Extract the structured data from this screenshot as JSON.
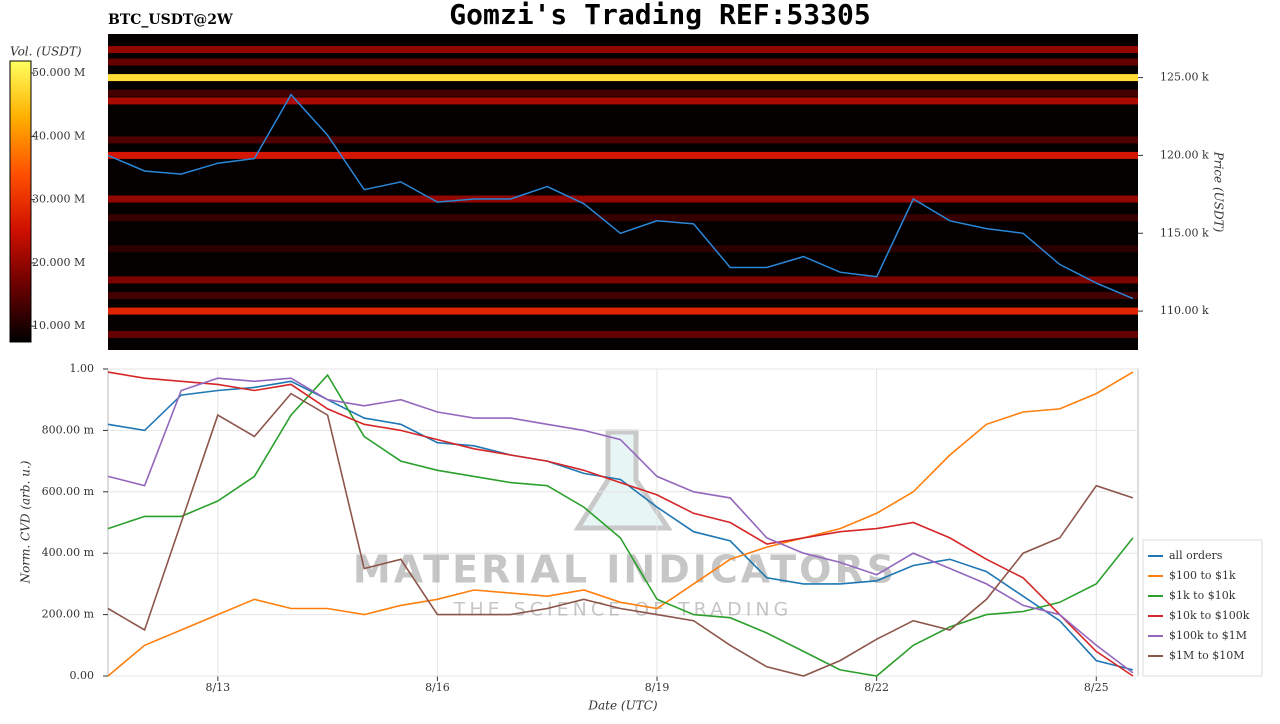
{
  "chart_data": [
    {
      "type": "heatmap",
      "title": "Gomzi's Trading REF:53305",
      "subtitle": "BTC_USDT@2W",
      "ylabel": "Price (USDT)",
      "colorbar_label": "Vol. (USDT)",
      "x": [
        11.5,
        12,
        12.5,
        13,
        13.5,
        14,
        14.5,
        15,
        15.5,
        16,
        16.5,
        17,
        17.5,
        18,
        18.5,
        19,
        19.5,
        20,
        20.5,
        21,
        21.5,
        22,
        22.5,
        23,
        23.5,
        24,
        24.5,
        25,
        25.5
      ],
      "xlim": [
        11.5,
        25.57
      ],
      "ylim": [
        107500,
        127800
      ],
      "yticks": [
        {
          "value": 110000,
          "label": "110.00 k"
        },
        {
          "value": 115000,
          "label": "115.00 k"
        },
        {
          "value": 120000,
          "label": "120.00 k"
        },
        {
          "value": 125000,
          "label": "125.00 k"
        }
      ],
      "clim": [
        7500000,
        51900000
      ],
      "cticks": [
        {
          "value": 10000000,
          "label": "10.000 M"
        },
        {
          "value": 20000000,
          "label": "20.000 M"
        },
        {
          "value": 30000000,
          "label": "30.000 M"
        },
        {
          "value": 40000000,
          "label": "40.000 M"
        },
        {
          "value": 50000000,
          "label": "50.000 M"
        }
      ],
      "colormap": [
        "#000000",
        "#6a0000",
        "#d01000",
        "#ff5000",
        "#ffb000",
        "#ffff60"
      ],
      "levels": [
        {
          "price": 126800,
          "volume": 20000000
        },
        {
          "price": 126000,
          "volume": 16000000
        },
        {
          "price": 125000,
          "volume": 48000000
        },
        {
          "price": 124000,
          "volume": 13000000
        },
        {
          "price": 123500,
          "volume": 22000000
        },
        {
          "price": 121000,
          "volume": 14000000
        },
        {
          "price": 120000,
          "volume": 26000000
        },
        {
          "price": 117200,
          "volume": 20000000
        },
        {
          "price": 116000,
          "volume": 12000000
        },
        {
          "price": 114000,
          "volume": 11000000
        },
        {
          "price": 112000,
          "volume": 18000000
        },
        {
          "price": 111000,
          "volume": 13000000
        },
        {
          "price": 110000,
          "volume": 28000000
        },
        {
          "price": 108500,
          "volume": 16000000
        }
      ],
      "series": [
        {
          "color": "#2a86d6",
          "values": [
            120000,
            119000,
            118800,
            119500,
            119800,
            123900,
            121300,
            117800,
            118300,
            117000,
            117200,
            117200,
            118000,
            116900,
            115000,
            115800,
            115600,
            112800,
            112800,
            113500,
            112500,
            112200,
            117200,
            115800,
            115300,
            115000,
            113000,
            111800,
            110800
          ]
        }
      ]
    },
    {
      "type": "line",
      "xlabel": "Date (UTC)",
      "ylabel": "Norm. CVD (arb. u.)",
      "x": [
        11.5,
        12,
        12.5,
        13,
        13.5,
        14,
        14.5,
        15,
        15.5,
        16,
        16.5,
        17,
        17.5,
        18,
        18.5,
        19,
        19.5,
        20,
        20.5,
        21,
        21.5,
        22,
        22.5,
        23,
        23.5,
        24,
        24.5,
        25,
        25.5
      ],
      "xlim": [
        11.5,
        25.57
      ],
      "xticks": [
        {
          "value": 13,
          "label": "8/13"
        },
        {
          "value": 16,
          "label": "8/16"
        },
        {
          "value": 19,
          "label": "8/19"
        },
        {
          "value": 22,
          "label": "8/22"
        },
        {
          "value": 25,
          "label": "8/25"
        }
      ],
      "ylim": [
        0,
        1
      ],
      "yticks": [
        {
          "value": 0,
          "label": "0.00"
        },
        {
          "value": 0.2,
          "label": "200.00 m"
        },
        {
          "value": 0.4,
          "label": "400.00 m"
        },
        {
          "value": 0.6,
          "label": "600.00 m"
        },
        {
          "value": 0.8,
          "label": "800.00 m"
        },
        {
          "value": 1,
          "label": "1.00"
        }
      ],
      "grid": true,
      "legend": "right",
      "watermark": [
        "MATERIAL INDICATORS",
        "THE SCIENCE OF TRADING"
      ],
      "series": [
        {
          "name": "all orders",
          "color": "#1f77b4",
          "values": [
            0.82,
            0.8,
            0.915,
            0.93,
            0.94,
            0.96,
            0.9,
            0.84,
            0.82,
            0.76,
            0.75,
            0.72,
            0.7,
            0.66,
            0.64,
            0.55,
            0.47,
            0.44,
            0.32,
            0.3,
            0.3,
            0.31,
            0.36,
            0.38,
            0.34,
            0.26,
            0.18,
            0.05,
            0.02
          ]
        },
        {
          "name": "$100 to $1k",
          "color": "#ff7f0e",
          "values": [
            0,
            0.1,
            0.15,
            0.2,
            0.25,
            0.22,
            0.22,
            0.2,
            0.23,
            0.25,
            0.28,
            0.27,
            0.26,
            0.28,
            0.24,
            0.22,
            0.3,
            0.38,
            0.42,
            0.45,
            0.48,
            0.53,
            0.6,
            0.72,
            0.82,
            0.86,
            0.87,
            0.92,
            0.99
          ]
        },
        {
          "name": "$1k to $10k",
          "color": "#2ca02c",
          "values": [
            0.48,
            0.52,
            0.52,
            0.57,
            0.65,
            0.85,
            0.98,
            0.78,
            0.7,
            0.67,
            0.65,
            0.63,
            0.62,
            0.55,
            0.45,
            0.25,
            0.2,
            0.19,
            0.14,
            0.08,
            0.02,
            0,
            0.1,
            0.16,
            0.2,
            0.21,
            0.24,
            0.3,
            0.45
          ]
        },
        {
          "name": "$10k to $100k",
          "color": "#d62728",
          "values": [
            0.99,
            0.97,
            0.96,
            0.95,
            0.93,
            0.95,
            0.87,
            0.82,
            0.8,
            0.77,
            0.74,
            0.72,
            0.7,
            0.67,
            0.63,
            0.59,
            0.53,
            0.5,
            0.43,
            0.45,
            0.47,
            0.48,
            0.5,
            0.45,
            0.38,
            0.32,
            0.2,
            0.08,
            0
          ]
        },
        {
          "name": "$100k to $1M",
          "color": "#9467bd",
          "values": [
            0.65,
            0.62,
            0.93,
            0.97,
            0.96,
            0.97,
            0.9,
            0.88,
            0.9,
            0.86,
            0.84,
            0.84,
            0.82,
            0.8,
            0.77,
            0.65,
            0.6,
            0.58,
            0.45,
            0.4,
            0.37,
            0.33,
            0.4,
            0.35,
            0.3,
            0.23,
            0.2,
            0.1,
            0.01
          ]
        },
        {
          "name": "$1M to $10M",
          "color": "#8c564b",
          "values": [
            0.22,
            0.15,
            0.5,
            0.85,
            0.78,
            0.92,
            0.85,
            0.35,
            0.38,
            0.2,
            0.2,
            0.2,
            0.22,
            0.25,
            0.22,
            0.2,
            0.18,
            0.1,
            0.03,
            0,
            0.05,
            0.12,
            0.18,
            0.15,
            0.25,
            0.4,
            0.45,
            0.62,
            0.58
          ]
        }
      ]
    }
  ]
}
